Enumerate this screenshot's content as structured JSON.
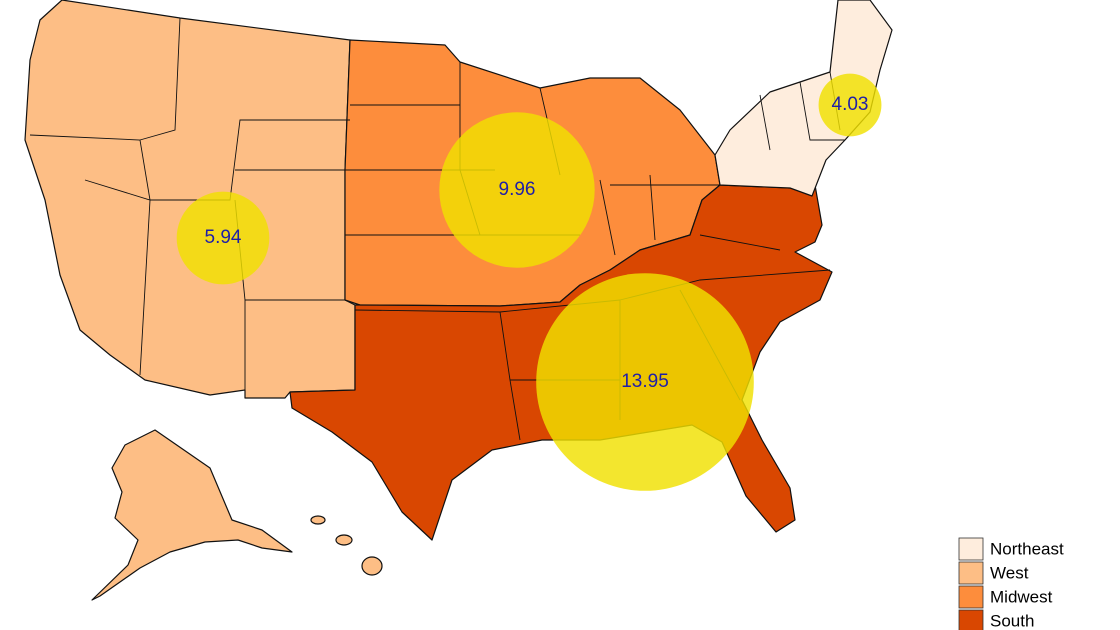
{
  "map": {
    "legend": [
      {
        "name": "Northeast",
        "color": "#feeddd"
      },
      {
        "name": "West",
        "color": "#fdbe85"
      },
      {
        "name": "Midwest",
        "color": "#fd8d3c"
      },
      {
        "name": "South",
        "color": "#d94701"
      }
    ],
    "bubbles": {
      "color": "#f0e000",
      "label_color": "#1f1fa8",
      "values": [
        5.94,
        9.96,
        13.95,
        4.03
      ]
    }
  }
}
